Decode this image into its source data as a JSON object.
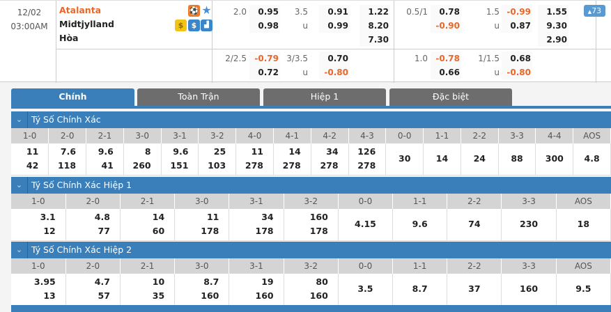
{
  "match": {
    "date": "12/02",
    "time": "03:00AM",
    "home": "Atalanta",
    "away": "Midtjylland",
    "draw": "Hòa",
    "more_count": "73",
    "line1": {
      "hdp": {
        "line": "2.0",
        "home": "0.95",
        "away": "0.98"
      },
      "ou": {
        "line": "3.5",
        "over": "0.91",
        "u_label": "u",
        "under": "0.99"
      },
      "x12": {
        "home": "1.22",
        "away": "8.20",
        "draw": "7.30"
      },
      "h1_hdp": {
        "line": "0.5/1",
        "home": "0.78",
        "away": "-0.90"
      },
      "h1_ou": {
        "line": "1.5",
        "over": "-0.99",
        "u_label": "u",
        "under": "0.87"
      },
      "h1_x12": {
        "home": "1.55",
        "away": "9.30",
        "draw": "2.90"
      }
    },
    "line2": {
      "hdp": {
        "line": "2/2.5",
        "home": "-0.79",
        "away": "0.72"
      },
      "ou": {
        "line": "3/3.5",
        "over": "0.70",
        "u_label": "u",
        "under": "-0.80"
      },
      "h1_hdp": {
        "line": "1.0",
        "home": "-0.78",
        "away": "0.66"
      },
      "h1_ou": {
        "line": "1/1.5",
        "over": "0.68",
        "u_label": "u",
        "under": "-0.80"
      }
    }
  },
  "tabs": [
    "Chính",
    "Toàn Trận",
    "Hiệp 1",
    "Đặc biệt"
  ],
  "sections": [
    {
      "title": "Tý Số Chính Xác",
      "headers": [
        "1-0",
        "2-0",
        "2-1",
        "3-0",
        "3-1",
        "3-2",
        "4-0",
        "4-1",
        "4-2",
        "4-3",
        "0-0",
        "1-1",
        "2-2",
        "3-3",
        "4-4",
        "AOS"
      ],
      "values": [
        [
          "11",
          "42"
        ],
        [
          "7.6",
          "118"
        ],
        [
          "9.6",
          "41"
        ],
        [
          "8",
          "260"
        ],
        [
          "9.6",
          "151"
        ],
        [
          "25",
          "103"
        ],
        [
          "11",
          "278"
        ],
        [
          "14",
          "278"
        ],
        [
          "34",
          "278"
        ],
        [
          "126",
          "278"
        ],
        [
          "30"
        ],
        [
          "14"
        ],
        [
          "24"
        ],
        [
          "88"
        ],
        [
          "300"
        ],
        [
          "4.8"
        ]
      ]
    },
    {
      "title": "Tý Số Chính Xác Hiệp 1",
      "headers": [
        "1-0",
        "2-0",
        "2-1",
        "3-0",
        "3-1",
        "3-2",
        "0-0",
        "1-1",
        "2-2",
        "3-3",
        "AOS"
      ],
      "values": [
        [
          "3.1",
          "12"
        ],
        [
          "4.8",
          "77"
        ],
        [
          "14",
          "60"
        ],
        [
          "11",
          "178"
        ],
        [
          "34",
          "178"
        ],
        [
          "160",
          "178"
        ],
        [
          "4.15"
        ],
        [
          "9.6"
        ],
        [
          "74"
        ],
        [
          "230"
        ],
        [
          "18"
        ]
      ]
    },
    {
      "title": "Tý Số Chính Xác Hiệp 2",
      "headers": [
        "1-0",
        "2-0",
        "2-1",
        "3-0",
        "3-1",
        "3-2",
        "0-0",
        "1-1",
        "2-2",
        "3-3",
        "AOS"
      ],
      "values": [
        [
          "3.95",
          "13"
        ],
        [
          "4.7",
          "57"
        ],
        [
          "10",
          "35"
        ],
        [
          "8.7",
          "160"
        ],
        [
          "19",
          "160"
        ],
        [
          "80",
          "160"
        ],
        [
          "3.5"
        ],
        [
          "8.7"
        ],
        [
          "37"
        ],
        [
          "160"
        ],
        [
          "9.5"
        ]
      ]
    }
  ],
  "colors": {
    "primary": "#3a7fb9",
    "tab_inactive": "#6d6d6d",
    "negative": "#e8672a",
    "home_team": "#e8672a"
  }
}
